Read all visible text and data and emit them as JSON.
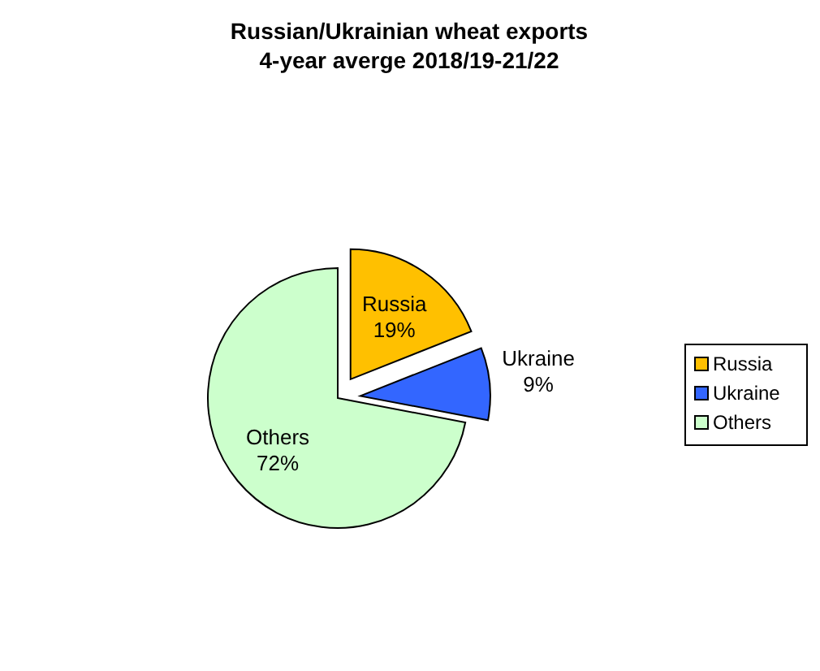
{
  "chart_data": {
    "type": "pie",
    "title": "Russian/Ukrainian wheat exports",
    "subtitle": "4-year averge 2018/19-21/22",
    "categories": [
      "Russia",
      "Ukraine",
      "Others"
    ],
    "values": [
      19,
      9,
      72
    ],
    "value_labels": [
      "19%",
      "9%",
      "72%"
    ],
    "colors": [
      "#ffc000",
      "#3366ff",
      "#ccffcc"
    ],
    "legend": "right"
  }
}
